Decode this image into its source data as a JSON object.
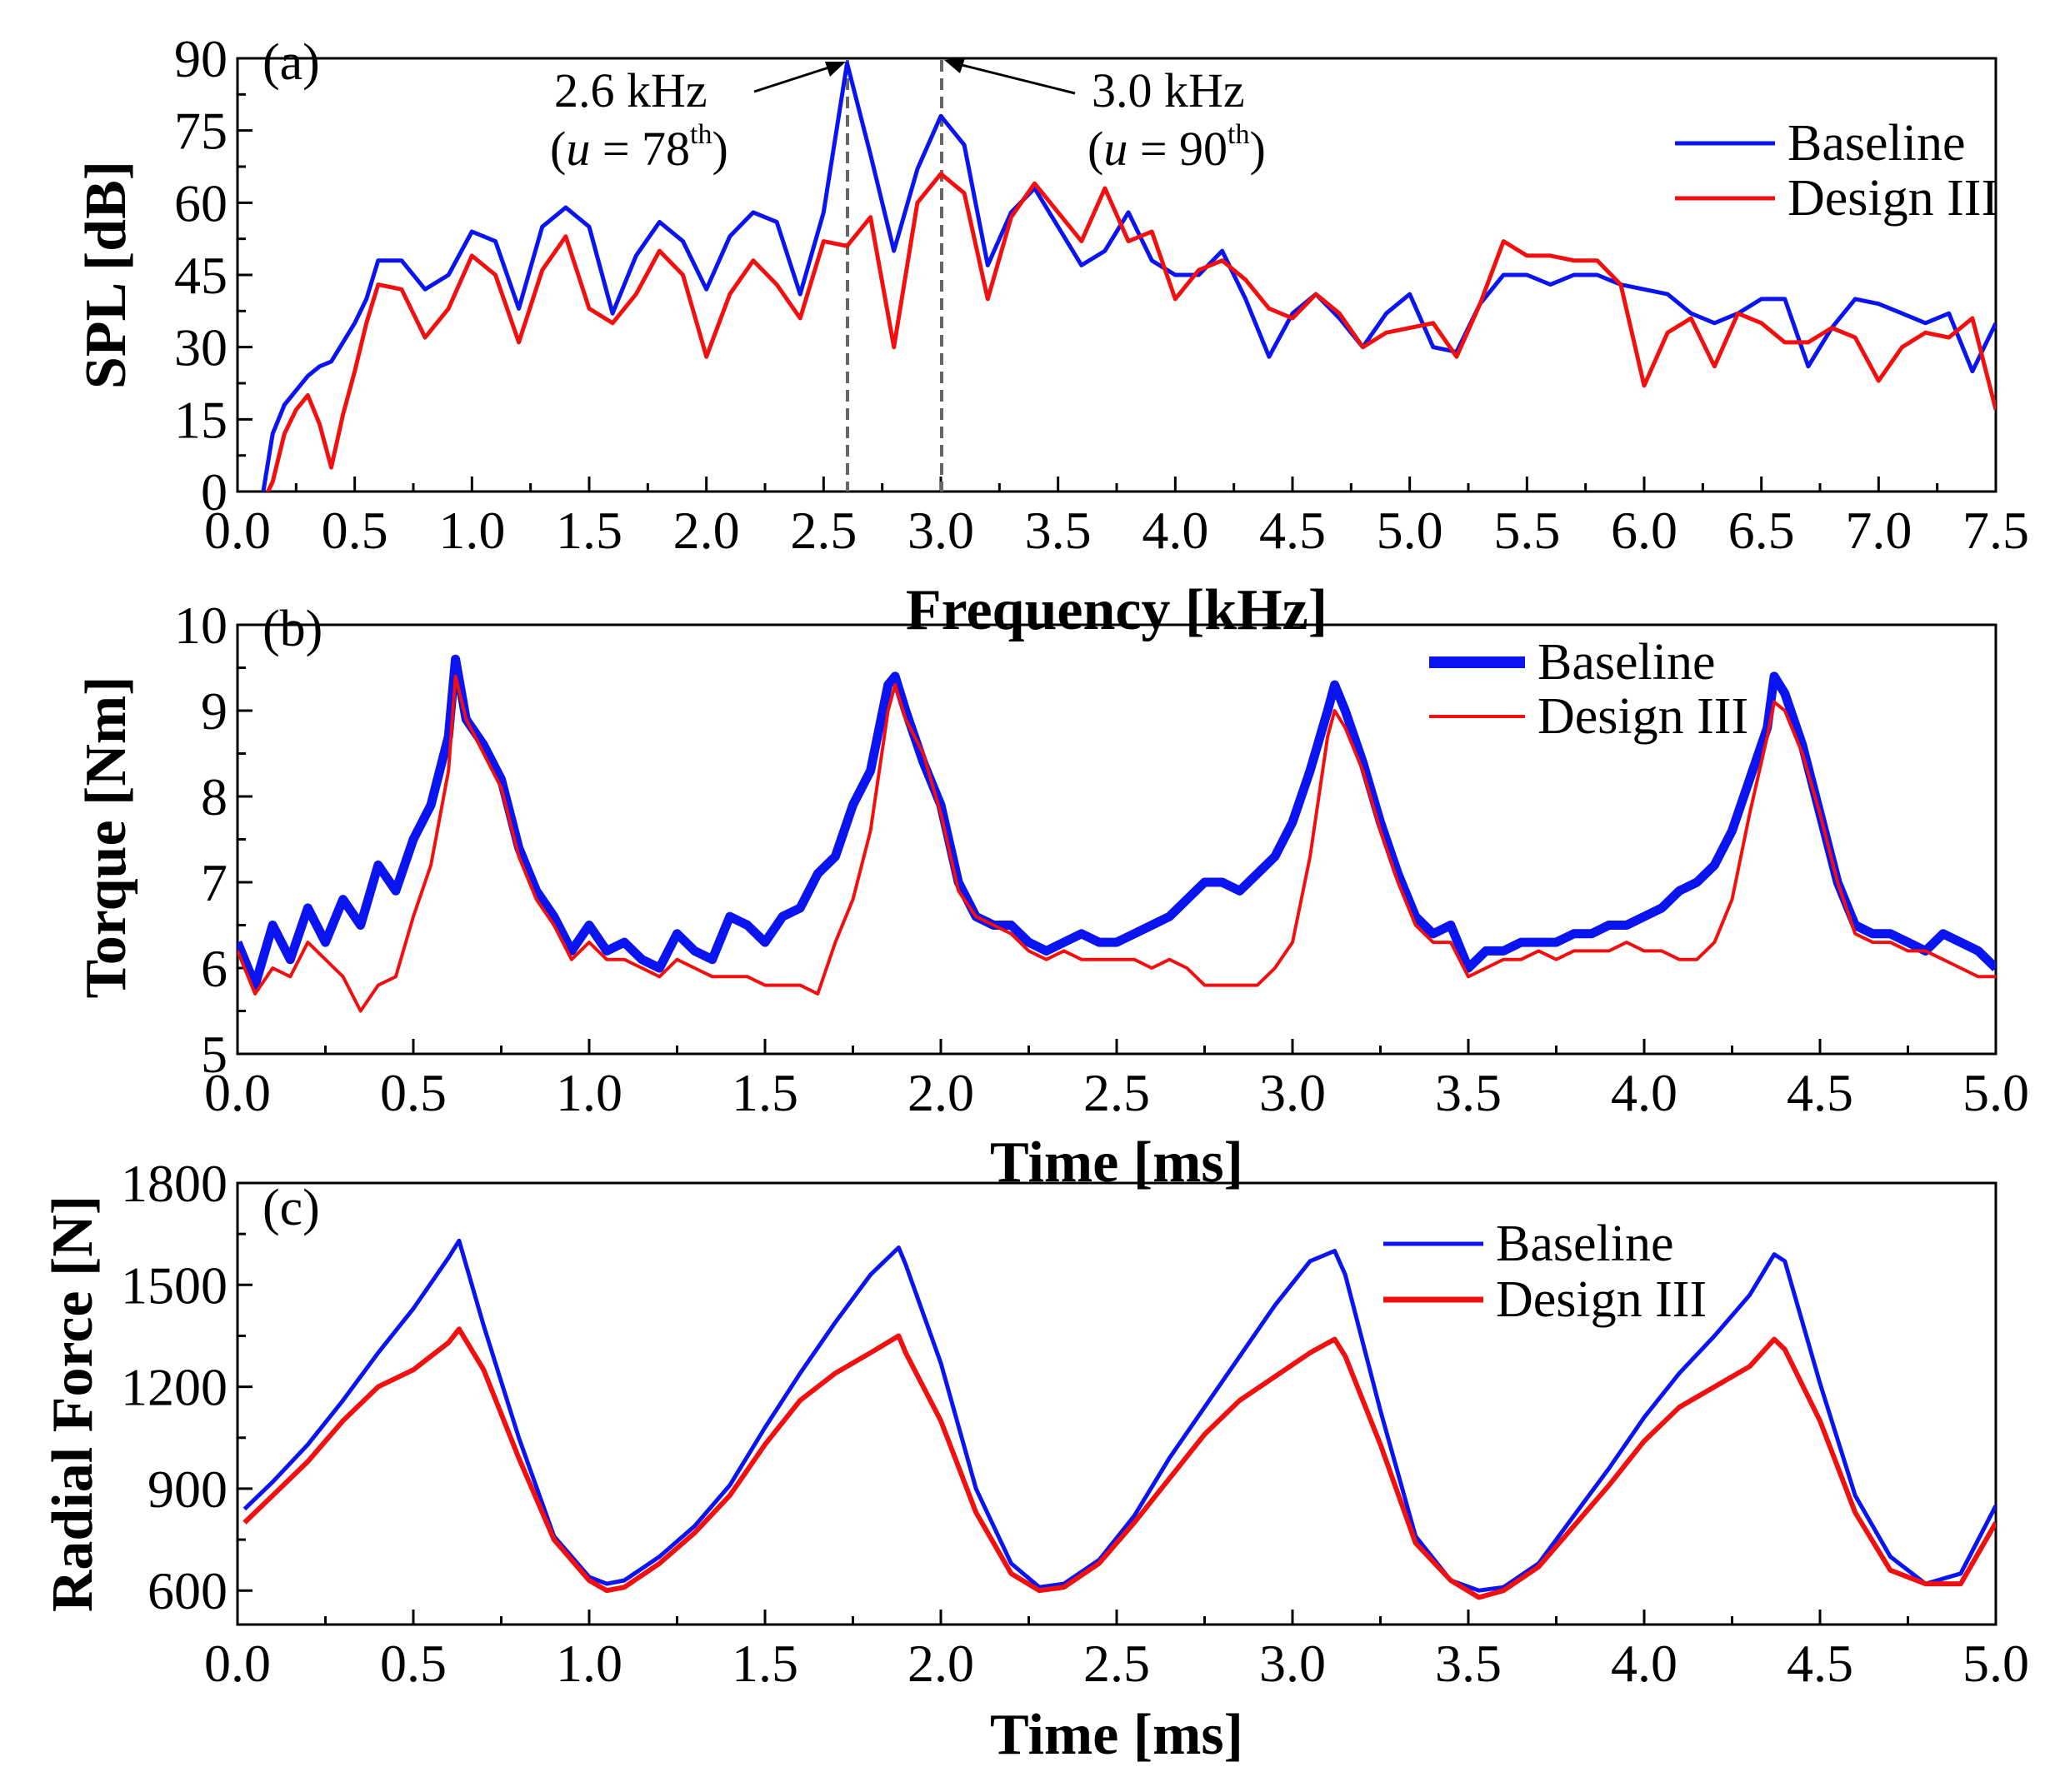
{
  "colors": {
    "baseline": "#0a14f0",
    "design": "#f01010"
  },
  "chart_data": [
    {
      "panel": "(a)",
      "type": "line",
      "xlabel": "Frequency [kHz]",
      "ylabel": "SPL [dB]",
      "xlim": [
        0,
        7.5
      ],
      "ylim": [
        0,
        90
      ],
      "xticks": [
        "0.0",
        "0.5",
        "1.0",
        "1.5",
        "2.0",
        "2.5",
        "3.0",
        "3.5",
        "4.0",
        "4.5",
        "5.0",
        "5.5",
        "6.0",
        "6.5",
        "7.0",
        "7.5"
      ],
      "yticks": [
        "0",
        "15",
        "30",
        "45",
        "60",
        "75",
        "90"
      ],
      "legend": {
        "placement": "top-right",
        "entries": [
          "Baseline",
          "Design III"
        ]
      },
      "annotations": [
        {
          "id": "peak1",
          "label": "2.6 kHz",
          "sub_prefix": "(",
          "var": "u",
          "sub_mid": " = 78",
          "sup": "th",
          "sub_suffix": ")",
          "x": 2.6,
          "y": 89
        },
        {
          "id": "peak2",
          "label": "3.0 kHz",
          "sub_prefix": "(",
          "var": "u",
          "sub_mid": " = 90",
          "sup": "th",
          "sub_suffix": ")",
          "x": 3.0,
          "y": 78
        }
      ],
      "x": [
        0.1,
        0.15,
        0.2,
        0.25,
        0.3,
        0.35,
        0.4,
        0.45,
        0.5,
        0.55,
        0.6,
        0.7,
        0.8,
        0.9,
        1.0,
        1.1,
        1.2,
        1.3,
        1.4,
        1.5,
        1.6,
        1.7,
        1.8,
        1.9,
        2.0,
        2.1,
        2.2,
        2.3,
        2.4,
        2.5,
        2.6,
        2.7,
        2.8,
        2.9,
        3.0,
        3.1,
        3.2,
        3.3,
        3.4,
        3.5,
        3.6,
        3.7,
        3.8,
        3.9,
        4.0,
        4.1,
        4.2,
        4.3,
        4.4,
        4.5,
        4.6,
        4.7,
        4.8,
        4.9,
        5.0,
        5.1,
        5.2,
        5.3,
        5.4,
        5.5,
        5.6,
        5.7,
        5.8,
        5.9,
        6.0,
        6.1,
        6.2,
        6.3,
        6.4,
        6.5,
        6.6,
        6.7,
        6.8,
        6.9,
        7.0,
        7.1,
        7.2,
        7.3,
        7.4,
        7.5
      ],
      "series": [
        {
          "name": "Baseline",
          "values": [
            -3,
            12,
            18,
            21,
            24,
            26,
            27,
            31,
            35,
            40,
            48,
            48,
            42,
            45,
            54,
            52,
            38,
            55,
            59,
            55,
            37,
            49,
            56,
            52,
            42,
            53,
            58,
            56,
            41,
            58,
            89,
            70,
            50,
            67,
            78,
            72,
            47,
            58,
            63,
            55,
            47,
            50,
            58,
            48,
            45,
            45,
            50,
            40,
            28,
            37,
            41,
            36,
            30,
            37,
            41,
            30,
            29,
            39,
            45,
            45,
            43,
            45,
            45,
            43,
            42,
            41,
            37,
            35,
            37,
            40,
            40,
            26,
            34,
            40,
            39,
            37,
            35,
            37,
            25,
            35
          ],
          "x_override": [
            0.1,
            0.15,
            0.2,
            0.25,
            0.3,
            0.35,
            0.4,
            0.45,
            0.5,
            0.55,
            0.6,
            0.7,
            0.8,
            0.9,
            1.0,
            1.1,
            1.2,
            1.3,
            1.4,
            1.5,
            1.6,
            1.7,
            1.8,
            1.9,
            2.0,
            2.1,
            2.2,
            2.3,
            2.4,
            2.5,
            2.6,
            2.7,
            2.8,
            2.9,
            3.0,
            3.1,
            3.2,
            3.3,
            3.4,
            3.5,
            3.6,
            3.7,
            3.8,
            3.9,
            4.0,
            4.1,
            4.2,
            4.3,
            4.4,
            4.5,
            4.6,
            4.7,
            4.8,
            4.9,
            5.0,
            5.1,
            5.2,
            5.3,
            5.4,
            5.5,
            5.6,
            5.7,
            5.8,
            5.9,
            6.0,
            6.1,
            6.2,
            6.3,
            6.4,
            6.5,
            6.6,
            6.7,
            6.8,
            6.9,
            7.0,
            7.1,
            7.2,
            7.3,
            7.4,
            7.5
          ]
        },
        {
          "name": "Design III",
          "values": [
            -3,
            2,
            12,
            17,
            20,
            14,
            5,
            16,
            25,
            35,
            43,
            42,
            32,
            38,
            49,
            45,
            31,
            46,
            53,
            38,
            35,
            41,
            50,
            45,
            28,
            41,
            48,
            43,
            36,
            52,
            51,
            57,
            30,
            60,
            66,
            62,
            40,
            57,
            64,
            58,
            52,
            63,
            52,
            54,
            40,
            46,
            48,
            44,
            38,
            36,
            41,
            37,
            30,
            33,
            34,
            35,
            28,
            39,
            52,
            49,
            49,
            48,
            48,
            43,
            22,
            33,
            36,
            26,
            37,
            35,
            31,
            31,
            34,
            32,
            23,
            30,
            33,
            32,
            36,
            17
          ]
        }
      ]
    },
    {
      "panel": "(b)",
      "type": "line",
      "xlabel": "Time [ms]",
      "ylabel": "Torque [Nm]",
      "xlim": [
        0,
        5
      ],
      "ylim": [
        5,
        10
      ],
      "xticks": [
        "0.0",
        "0.5",
        "1.0",
        "1.5",
        "2.0",
        "2.5",
        "3.0",
        "3.5",
        "4.0",
        "4.5",
        "5.0"
      ],
      "yticks": [
        "5",
        "6",
        "7",
        "8",
        "9",
        "10"
      ],
      "legend": {
        "placement": "top-right",
        "entries": [
          "Baseline",
          "Design III"
        ]
      },
      "x": [
        0.0,
        0.05,
        0.1,
        0.15,
        0.2,
        0.25,
        0.3,
        0.35,
        0.4,
        0.45,
        0.5,
        0.55,
        0.6,
        0.62,
        0.65,
        0.7,
        0.75,
        0.8,
        0.85,
        0.9,
        0.95,
        1.0,
        1.05,
        1.1,
        1.15,
        1.2,
        1.25,
        1.3,
        1.35,
        1.4,
        1.45,
        1.5,
        1.55,
        1.6,
        1.65,
        1.7,
        1.75,
        1.8,
        1.85,
        1.87,
        1.9,
        1.95,
        2.0,
        2.05,
        2.1,
        2.15,
        2.2,
        2.25,
        2.3,
        2.35,
        2.4,
        2.45,
        2.5,
        2.55,
        2.6,
        2.65,
        2.7,
        2.75,
        2.8,
        2.85,
        2.9,
        2.95,
        3.0,
        3.05,
        3.1,
        3.12,
        3.15,
        3.2,
        3.25,
        3.3,
        3.35,
        3.4,
        3.45,
        3.5,
        3.55,
        3.6,
        3.65,
        3.7,
        3.75,
        3.8,
        3.85,
        3.9,
        3.95,
        4.0,
        4.05,
        4.1,
        4.15,
        4.2,
        4.25,
        4.3,
        4.35,
        4.37,
        4.4,
        4.45,
        4.5,
        4.55,
        4.6,
        4.65,
        4.7,
        4.75,
        4.8,
        4.85,
        4.9,
        4.95,
        5.0
      ],
      "series": [
        {
          "name": "Baseline",
          "values": [
            6.3,
            5.8,
            6.5,
            6.1,
            6.7,
            6.3,
            6.8,
            6.5,
            7.2,
            6.9,
            7.5,
            7.9,
            8.7,
            9.6,
            8.9,
            8.6,
            8.2,
            7.4,
            6.9,
            6.6,
            6.2,
            6.5,
            6.2,
            6.3,
            6.1,
            6.0,
            6.4,
            6.2,
            6.1,
            6.6,
            6.5,
            6.3,
            6.6,
            6.7,
            7.1,
            7.3,
            7.9,
            8.3,
            9.3,
            9.4,
            9.0,
            8.4,
            7.9,
            7.0,
            6.6,
            6.5,
            6.5,
            6.3,
            6.2,
            6.3,
            6.4,
            6.3,
            6.3,
            6.4,
            6.5,
            6.6,
            6.8,
            7.0,
            7.0,
            6.9,
            7.1,
            7.3,
            7.7,
            8.3,
            9.0,
            9.3,
            9.0,
            8.4,
            7.7,
            7.1,
            6.6,
            6.4,
            6.5,
            6.0,
            6.2,
            6.2,
            6.3,
            6.3,
            6.3,
            6.4,
            6.4,
            6.5,
            6.5,
            6.6,
            6.7,
            6.9,
            7.0,
            7.2,
            7.6,
            8.2,
            8.8,
            9.4,
            9.2,
            8.6,
            7.8,
            7.0,
            6.5,
            6.4,
            6.4,
            6.3,
            6.2,
            6.4,
            6.3,
            6.2,
            6.0
          ]
        },
        {
          "name": "Design III",
          "values": [
            6.2,
            5.7,
            6.0,
            5.9,
            6.3,
            6.1,
            5.9,
            5.5,
            5.8,
            5.9,
            6.6,
            7.2,
            8.3,
            9.4,
            8.9,
            8.5,
            8.1,
            7.3,
            6.8,
            6.5,
            6.1,
            6.3,
            6.1,
            6.1,
            6.0,
            5.9,
            6.1,
            6.0,
            5.9,
            5.9,
            5.9,
            5.8,
            5.8,
            5.8,
            5.7,
            6.3,
            6.8,
            7.6,
            9.0,
            9.3,
            8.9,
            8.5,
            7.8,
            6.9,
            6.6,
            6.5,
            6.4,
            6.2,
            6.1,
            6.2,
            6.1,
            6.1,
            6.1,
            6.1,
            6.0,
            6.1,
            6.0,
            5.8,
            5.8,
            5.8,
            5.8,
            6.0,
            6.3,
            7.3,
            8.7,
            9.0,
            8.8,
            8.3,
            7.6,
            7.0,
            6.5,
            6.3,
            6.3,
            5.9,
            6.0,
            6.1,
            6.1,
            6.2,
            6.1,
            6.2,
            6.2,
            6.2,
            6.3,
            6.2,
            6.2,
            6.1,
            6.1,
            6.3,
            6.8,
            7.8,
            8.7,
            9.1,
            9.0,
            8.5,
            7.8,
            7.0,
            6.4,
            6.3,
            6.3,
            6.2,
            6.2,
            6.1,
            6.0,
            5.9,
            5.9
          ]
        }
      ]
    },
    {
      "panel": "(c)",
      "type": "line",
      "xlabel": "Time [ms]",
      "ylabel": "Radial Force [N]",
      "xlim": [
        0,
        5
      ],
      "ylim": [
        500,
        1800
      ],
      "xticks": [
        "0.0",
        "0.5",
        "1.0",
        "1.5",
        "2.0",
        "2.5",
        "3.0",
        "3.5",
        "4.0",
        "4.5",
        "5.0"
      ],
      "yticks": [
        "600",
        "900",
        "1200",
        "1500",
        "1800"
      ],
      "legend": {
        "placement": "top-right",
        "entries": [
          "Baseline",
          "Design III"
        ]
      },
      "x": [
        0.02,
        0.1,
        0.2,
        0.3,
        0.4,
        0.5,
        0.6,
        0.63,
        0.7,
        0.8,
        0.9,
        1.0,
        1.05,
        1.1,
        1.2,
        1.3,
        1.4,
        1.5,
        1.6,
        1.7,
        1.8,
        1.88,
        1.9,
        2.0,
        2.1,
        2.2,
        2.28,
        2.35,
        2.45,
        2.55,
        2.65,
        2.75,
        2.85,
        2.95,
        3.05,
        3.12,
        3.15,
        3.25,
        3.35,
        3.45,
        3.53,
        3.6,
        3.7,
        3.8,
        3.9,
        4.0,
        4.1,
        4.2,
        4.3,
        4.37,
        4.4,
        4.5,
        4.6,
        4.7,
        4.8,
        4.9,
        5.0
      ],
      "series": [
        {
          "name": "Baseline",
          "values": [
            840,
            920,
            1030,
            1160,
            1300,
            1430,
            1580,
            1630,
            1380,
            1050,
            760,
            640,
            620,
            630,
            700,
            790,
            910,
            1080,
            1240,
            1390,
            1530,
            1610,
            1560,
            1270,
            900,
            680,
            610,
            620,
            690,
            820,
            990,
            1140,
            1290,
            1440,
            1570,
            1600,
            1530,
            1130,
            760,
            630,
            600,
            610,
            680,
            820,
            960,
            1110,
            1240,
            1350,
            1470,
            1590,
            1570,
            1210,
            880,
            700,
            620,
            650,
            850
          ]
        },
        {
          "name": "Design III",
          "values": [
            800,
            880,
            980,
            1100,
            1200,
            1250,
            1330,
            1370,
            1250,
            990,
            750,
            630,
            600,
            610,
            680,
            770,
            880,
            1030,
            1160,
            1240,
            1300,
            1350,
            1300,
            1100,
            830,
            650,
            600,
            610,
            680,
            800,
            930,
            1060,
            1160,
            1230,
            1300,
            1340,
            1290,
            1030,
            740,
            630,
            580,
            600,
            670,
            790,
            910,
            1040,
            1140,
            1200,
            1260,
            1340,
            1310,
            1100,
            830,
            660,
            620,
            620,
            800
          ]
        }
      ]
    }
  ]
}
